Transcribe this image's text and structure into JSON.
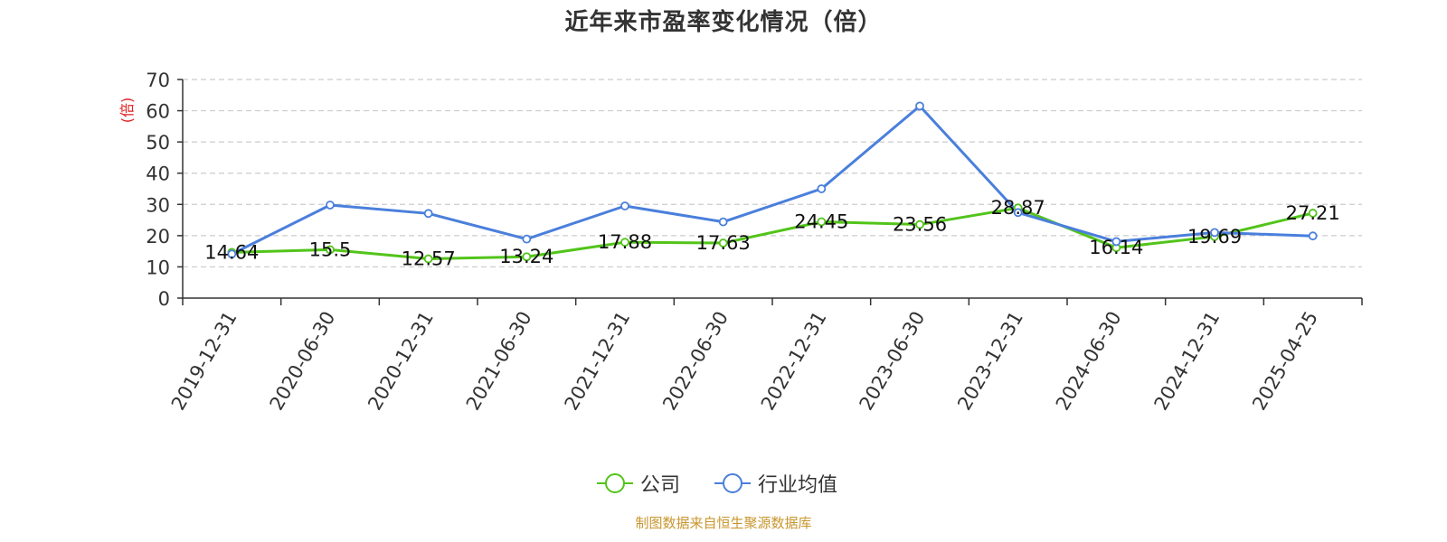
{
  "title": "近年来市盈率变化情况（倍）",
  "source": "制图数据来自恒生聚源数据库",
  "chart_data": {
    "type": "line",
    "title": "近年来市盈率变化情况（倍）",
    "ylabel": "(倍)",
    "ylim": [
      0,
      70
    ],
    "yticks": [
      0,
      10,
      20,
      30,
      40,
      50,
      60,
      70
    ],
    "grid": true,
    "legend_position": "bottom",
    "categories": [
      "2019-12-31",
      "2020-06-30",
      "2020-12-31",
      "2021-06-30",
      "2021-12-31",
      "2022-06-30",
      "2022-12-31",
      "2023-06-30",
      "2023-12-31",
      "2024-06-30",
      "2024-12-31",
      "2025-04-25"
    ],
    "series": [
      {
        "name": "公司",
        "color": "#52c41a",
        "values": [
          14.64,
          15.5,
          12.57,
          13.24,
          17.88,
          17.63,
          24.45,
          23.56,
          28.87,
          16.14,
          19.69,
          27.21
        ],
        "labels": [
          "14.64",
          "15.5",
          "12.57",
          "13.24",
          "17.88",
          "17.63",
          "24.45",
          "23.56",
          "28.87",
          "16.14",
          "19.69",
          "27.21"
        ]
      },
      {
        "name": "行业均值",
        "color": "#4a7fdc",
        "values": [
          14.1,
          29.8,
          27.1,
          18.9,
          29.5,
          24.4,
          35.0,
          61.5,
          27.4,
          18.1,
          21.0,
          19.9
        ]
      }
    ]
  }
}
